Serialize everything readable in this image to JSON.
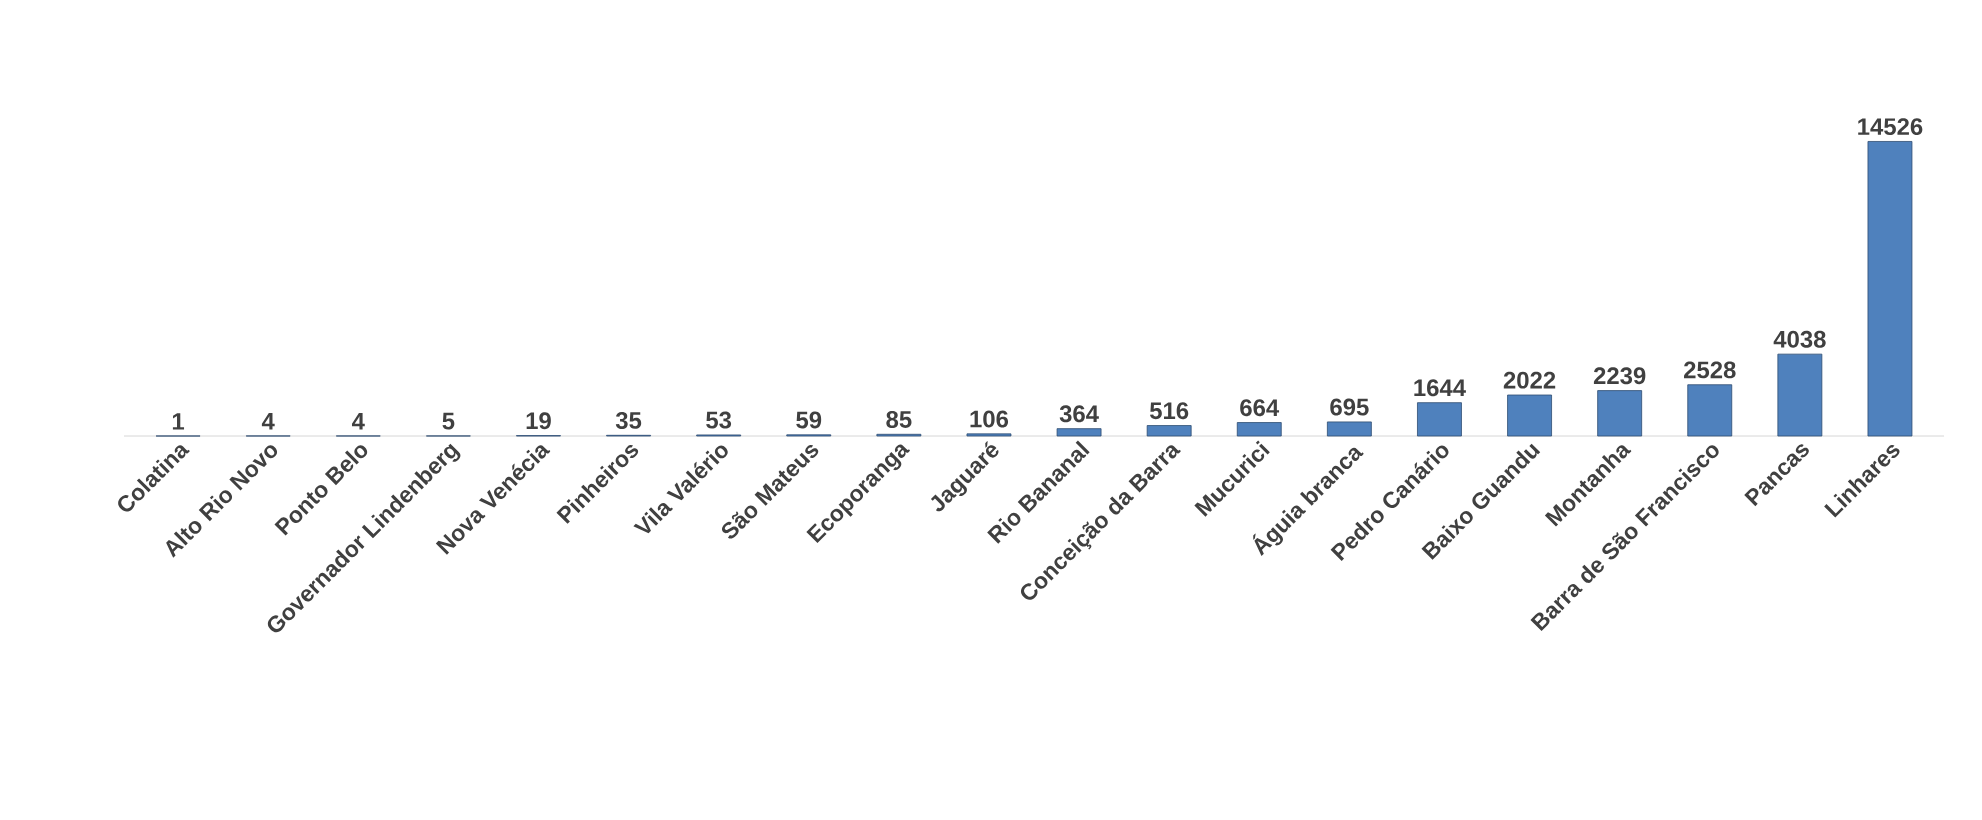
{
  "chart_data": {
    "type": "bar",
    "categories": [
      "Colatina",
      "Alto Rio Novo",
      "Ponto Belo",
      "Governador Lindenberg",
      "Nova Venécia",
      "Pinheiros",
      "Vila Valério",
      "São Mateus",
      "Ecoporanga",
      "Jaguaré",
      "Rio Bananal",
      "Conceição da Barra",
      "Mucurici",
      "Águia branca",
      "Pedro Canário",
      "Baixo Guandu",
      "Montanha",
      "Barra de São Francisco",
      "Pancas",
      "Linhares"
    ],
    "values": [
      1,
      4,
      4,
      5,
      19,
      35,
      53,
      59,
      85,
      106,
      364,
      516,
      664,
      695,
      1644,
      2022,
      2239,
      2528,
      4038,
      14526
    ],
    "color": "#4f81bd",
    "data_labels": true
  }
}
